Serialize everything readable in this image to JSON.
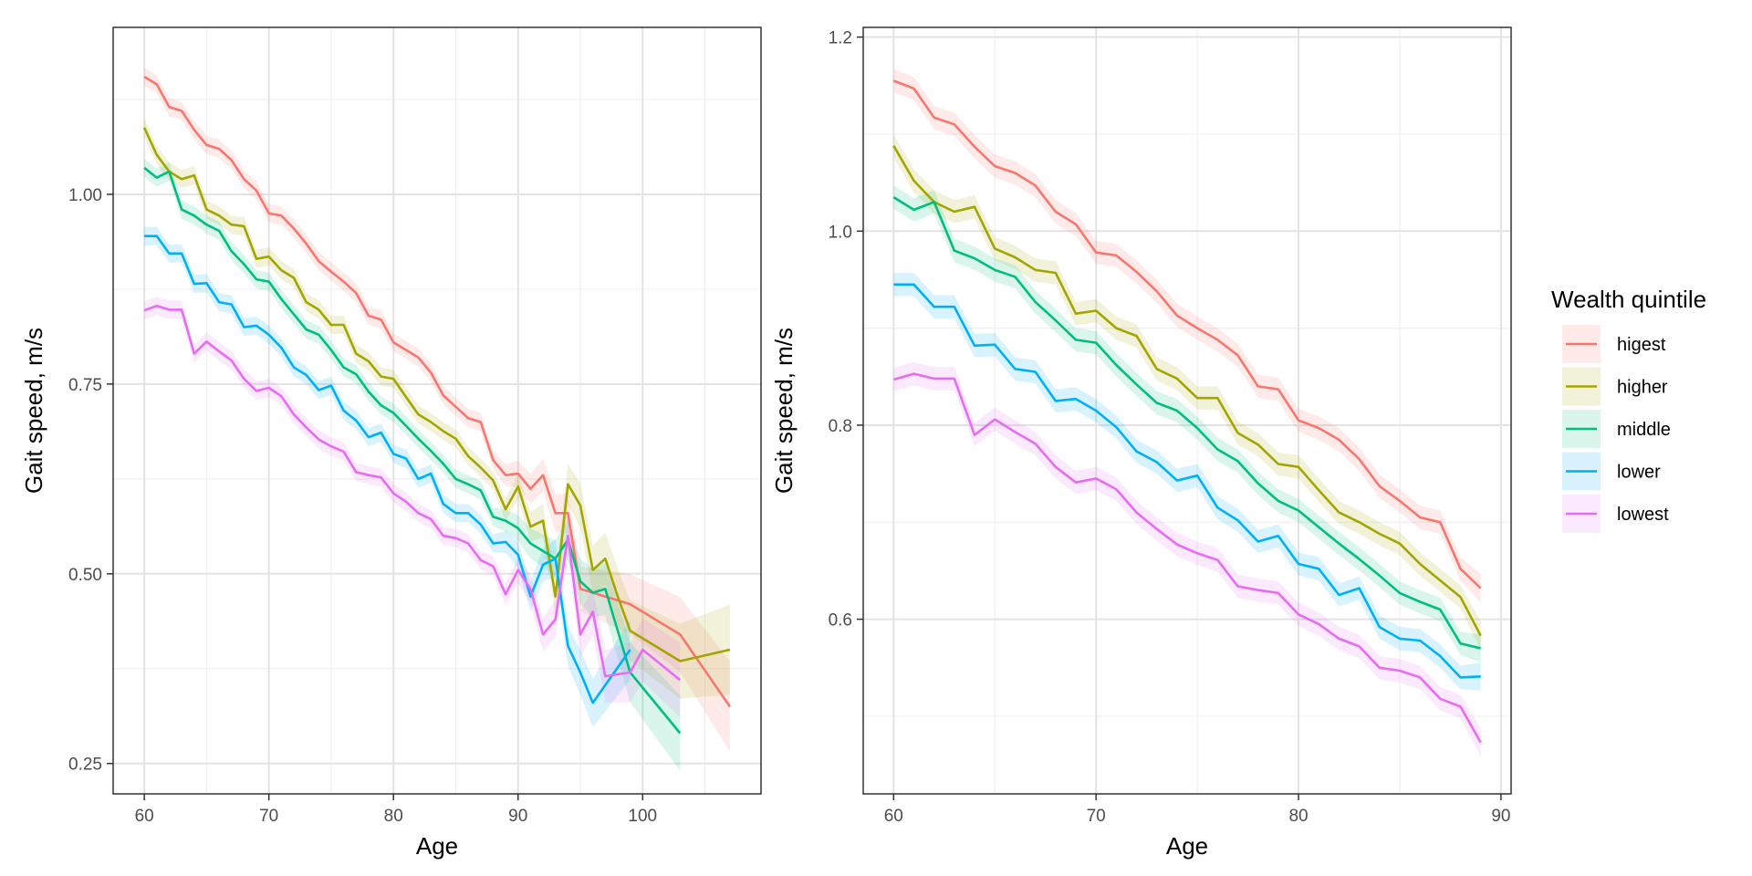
{
  "legend": {
    "title": "Wealth quintile",
    "items": [
      {
        "label": "higest",
        "color": "#F8766D"
      },
      {
        "label": "higher",
        "color": "#A3A500"
      },
      {
        "label": "middle",
        "color": "#00BF7D"
      },
      {
        "label": "lower",
        "color": "#00B0F6"
      },
      {
        "label": "lowest",
        "color": "#E76BF3"
      }
    ]
  },
  "chart_data": [
    {
      "type": "line",
      "xlabel": "Age",
      "ylabel": "Gait speed, m/s",
      "xlim": [
        57.5,
        109.5
      ],
      "ylim": [
        0.21,
        1.22
      ],
      "x_ticks": [
        60,
        70,
        80,
        90,
        100
      ],
      "y_ticks": [
        0.25,
        0.5,
        0.75,
        1.0
      ],
      "y_tick_labels": [
        "0.25",
        "0.50",
        "0.75",
        "1.00"
      ],
      "grid": true,
      "series": [
        {
          "name": "higest",
          "color": "#F8766D",
          "x": [
            60,
            61,
            62,
            63,
            64,
            65,
            66,
            67,
            68,
            69,
            70,
            71,
            72,
            73,
            74,
            75,
            76,
            77,
            78,
            79,
            80,
            81,
            82,
            83,
            84,
            85,
            86,
            87,
            88,
            89,
            90,
            91,
            92,
            93,
            94,
            95,
            99,
            103,
            107
          ],
          "y": [
            1.155,
            1.145,
            1.115,
            1.11,
            1.085,
            1.065,
            1.06,
            1.045,
            1.02,
            1.005,
            0.975,
            0.972,
            0.955,
            0.935,
            0.912,
            0.898,
            0.885,
            0.87,
            0.84,
            0.835,
            0.805,
            0.795,
            0.785,
            0.765,
            0.735,
            0.72,
            0.705,
            0.7,
            0.65,
            0.63,
            0.632,
            0.612,
            0.63,
            0.58,
            0.58,
            0.48,
            0.46,
            0.42,
            0.325
          ]
        },
        {
          "name": "higher",
          "color": "#A3A500",
          "x": [
            60,
            61,
            62,
            63,
            64,
            65,
            66,
            67,
            68,
            69,
            70,
            71,
            72,
            73,
            74,
            75,
            76,
            77,
            78,
            79,
            80,
            81,
            82,
            83,
            84,
            85,
            86,
            87,
            88,
            89,
            90,
            91,
            92,
            93,
            94,
            95,
            96,
            97,
            98,
            99,
            103,
            107
          ],
          "y": [
            1.088,
            1.052,
            1.03,
            1.02,
            1.025,
            0.98,
            0.972,
            0.96,
            0.958,
            0.915,
            0.918,
            0.9,
            0.89,
            0.858,
            0.848,
            0.828,
            0.828,
            0.79,
            0.78,
            0.76,
            0.757,
            0.733,
            0.71,
            0.7,
            0.688,
            0.678,
            0.655,
            0.64,
            0.623,
            0.585,
            0.615,
            0.562,
            0.57,
            0.47,
            0.618,
            0.59,
            0.505,
            0.52,
            0.47,
            0.425,
            0.385,
            0.4
          ]
        },
        {
          "name": "middle",
          "color": "#00BF7D",
          "x": [
            60,
            61,
            62,
            63,
            64,
            65,
            66,
            67,
            68,
            69,
            70,
            71,
            72,
            73,
            74,
            75,
            76,
            77,
            78,
            79,
            80,
            81,
            82,
            83,
            84,
            85,
            86,
            87,
            88,
            89,
            90,
            91,
            92,
            93,
            94,
            95,
            96,
            97,
            99,
            103
          ],
          "y": [
            1.035,
            1.022,
            1.03,
            0.98,
            0.972,
            0.96,
            0.952,
            0.925,
            0.908,
            0.888,
            0.885,
            0.862,
            0.842,
            0.822,
            0.815,
            0.795,
            0.772,
            0.763,
            0.74,
            0.722,
            0.712,
            0.695,
            0.678,
            0.662,
            0.645,
            0.625,
            0.618,
            0.61,
            0.575,
            0.57,
            0.56,
            0.54,
            0.53,
            0.52,
            0.545,
            0.49,
            0.475,
            0.48,
            0.37,
            0.29
          ]
        },
        {
          "name": "lower",
          "color": "#00B0F6",
          "x": [
            60,
            61,
            62,
            63,
            64,
            65,
            66,
            67,
            68,
            69,
            70,
            71,
            72,
            73,
            74,
            75,
            76,
            77,
            78,
            79,
            80,
            81,
            82,
            83,
            84,
            85,
            86,
            87,
            88,
            89,
            90,
            91,
            92,
            93,
            94,
            95,
            96,
            99
          ],
          "y": [
            0.945,
            0.945,
            0.922,
            0.922,
            0.882,
            0.883,
            0.858,
            0.855,
            0.825,
            0.827,
            0.815,
            0.798,
            0.772,
            0.762,
            0.742,
            0.748,
            0.715,
            0.702,
            0.68,
            0.686,
            0.658,
            0.652,
            0.625,
            0.632,
            0.592,
            0.58,
            0.58,
            0.565,
            0.54,
            0.542,
            0.525,
            0.47,
            0.512,
            0.52,
            0.405,
            0.37,
            0.33,
            0.4
          ]
        },
        {
          "name": "lowest",
          "color": "#E76BF3",
          "x": [
            60,
            61,
            62,
            63,
            64,
            65,
            66,
            67,
            68,
            69,
            70,
            71,
            72,
            73,
            74,
            75,
            76,
            77,
            78,
            79,
            80,
            81,
            82,
            83,
            84,
            85,
            86,
            87,
            88,
            89,
            90,
            91,
            92,
            93,
            94,
            95,
            96,
            97,
            99,
            100,
            103
          ],
          "y": [
            0.847,
            0.853,
            0.848,
            0.848,
            0.79,
            0.806,
            0.793,
            0.781,
            0.757,
            0.741,
            0.745,
            0.734,
            0.71,
            0.693,
            0.677,
            0.668,
            0.661,
            0.634,
            0.63,
            0.627,
            0.606,
            0.595,
            0.58,
            0.572,
            0.55,
            0.547,
            0.54,
            0.518,
            0.51,
            0.473,
            0.505,
            0.48,
            0.42,
            0.44,
            0.55,
            0.42,
            0.45,
            0.365,
            0.37,
            0.4,
            0.36
          ]
        }
      ]
    },
    {
      "type": "line",
      "xlabel": "Age",
      "ylabel": "Gait speed, m/s",
      "xlim": [
        58.5,
        90.5
      ],
      "ylim": [
        0.42,
        1.21
      ],
      "x_ticks": [
        60,
        70,
        80,
        90
      ],
      "y_ticks": [
        0.6,
        0.8,
        1.0,
        1.2
      ],
      "y_tick_labels": [
        "0.6",
        "0.8",
        "1.0",
        "1.2"
      ],
      "grid": true,
      "series": [
        {
          "name": "higest",
          "color": "#F8766D",
          "x": [
            60,
            61,
            62,
            63,
            64,
            65,
            66,
            67,
            68,
            69,
            70,
            71,
            72,
            73,
            74,
            75,
            76,
            77,
            78,
            79,
            80,
            81,
            82,
            83,
            84,
            85,
            86,
            87,
            88,
            89
          ],
          "y": [
            1.155,
            1.147,
            1.117,
            1.11,
            1.087,
            1.067,
            1.06,
            1.047,
            1.02,
            1.007,
            0.978,
            0.975,
            0.958,
            0.938,
            0.913,
            0.9,
            0.888,
            0.872,
            0.84,
            0.837,
            0.805,
            0.797,
            0.785,
            0.765,
            0.737,
            0.722,
            0.705,
            0.7,
            0.652,
            0.632
          ]
        },
        {
          "name": "higher",
          "color": "#A3A500",
          "x": [
            60,
            61,
            62,
            63,
            64,
            65,
            66,
            67,
            68,
            69,
            70,
            71,
            72,
            73,
            74,
            75,
            76,
            77,
            78,
            79,
            80,
            81,
            82,
            83,
            84,
            85,
            86,
            87,
            88,
            89
          ],
          "y": [
            1.088,
            1.052,
            1.03,
            1.02,
            1.025,
            0.982,
            0.973,
            0.96,
            0.957,
            0.915,
            0.918,
            0.9,
            0.892,
            0.858,
            0.848,
            0.828,
            0.828,
            0.792,
            0.78,
            0.76,
            0.757,
            0.733,
            0.71,
            0.7,
            0.688,
            0.678,
            0.657,
            0.64,
            0.623,
            0.583
          ]
        },
        {
          "name": "middle",
          "color": "#00BF7D",
          "x": [
            60,
            61,
            62,
            63,
            64,
            65,
            66,
            67,
            68,
            69,
            70,
            71,
            72,
            73,
            74,
            75,
            76,
            77,
            78,
            79,
            80,
            81,
            82,
            83,
            84,
            85,
            86,
            87,
            88,
            89
          ],
          "y": [
            1.035,
            1.022,
            1.03,
            0.98,
            0.972,
            0.96,
            0.953,
            0.927,
            0.908,
            0.888,
            0.885,
            0.862,
            0.842,
            0.823,
            0.815,
            0.797,
            0.775,
            0.763,
            0.74,
            0.722,
            0.712,
            0.695,
            0.678,
            0.662,
            0.645,
            0.627,
            0.618,
            0.61,
            0.575,
            0.57
          ]
        },
        {
          "name": "lower",
          "color": "#00B0F6",
          "x": [
            60,
            61,
            62,
            63,
            64,
            65,
            66,
            67,
            68,
            69,
            70,
            71,
            72,
            73,
            74,
            75,
            76,
            77,
            78,
            79,
            80,
            81,
            82,
            83,
            84,
            85,
            86,
            87,
            88,
            89
          ],
          "y": [
            0.945,
            0.945,
            0.922,
            0.922,
            0.882,
            0.883,
            0.858,
            0.855,
            0.825,
            0.827,
            0.815,
            0.798,
            0.773,
            0.762,
            0.743,
            0.748,
            0.715,
            0.702,
            0.68,
            0.686,
            0.657,
            0.652,
            0.625,
            0.632,
            0.592,
            0.58,
            0.578,
            0.562,
            0.54,
            0.541
          ]
        },
        {
          "name": "lowest",
          "color": "#E76BF3",
          "x": [
            60,
            61,
            62,
            63,
            64,
            65,
            66,
            67,
            68,
            69,
            70,
            71,
            72,
            73,
            74,
            75,
            76,
            77,
            78,
            79,
            80,
            81,
            82,
            83,
            84,
            85,
            86,
            87,
            88,
            89
          ],
          "y": [
            0.847,
            0.853,
            0.848,
            0.848,
            0.79,
            0.806,
            0.793,
            0.781,
            0.757,
            0.741,
            0.745,
            0.734,
            0.71,
            0.693,
            0.677,
            0.668,
            0.661,
            0.634,
            0.63,
            0.627,
            0.605,
            0.595,
            0.58,
            0.572,
            0.55,
            0.547,
            0.54,
            0.518,
            0.51,
            0.473
          ]
        }
      ]
    }
  ]
}
